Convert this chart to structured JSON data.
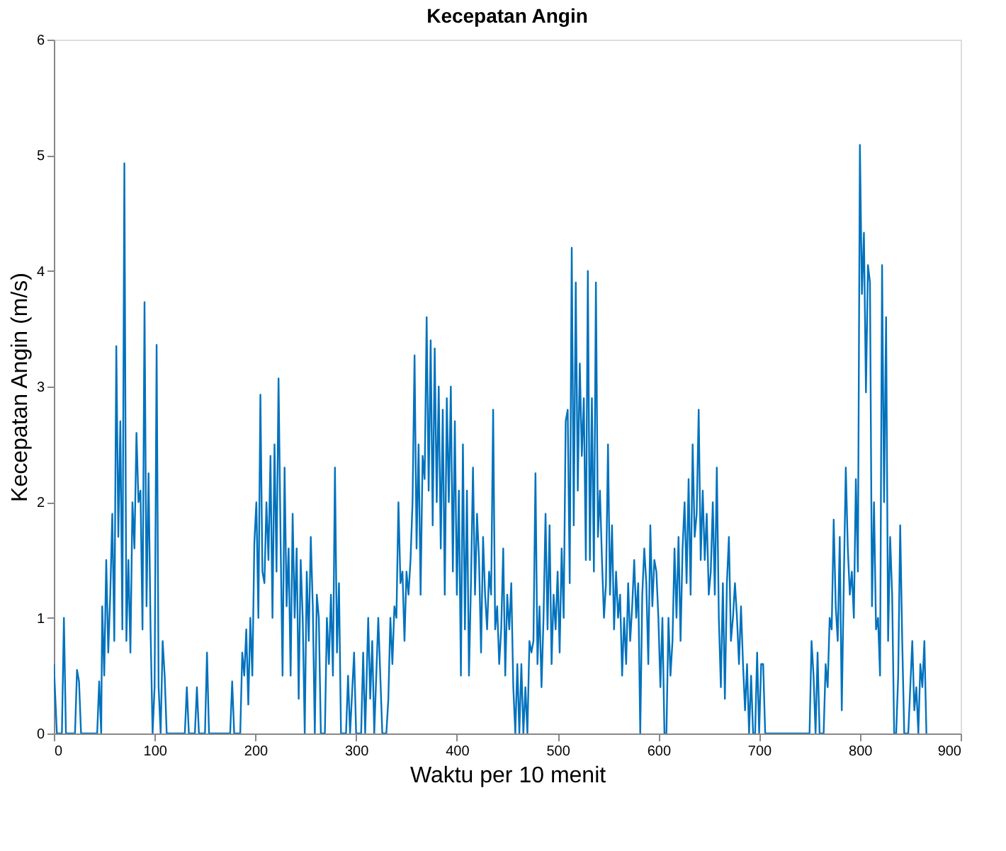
{
  "chart_data": {
    "type": "line",
    "title": "Kecepatan Angin",
    "xlabel": "Waktu per 10 menit",
    "ylabel": "Kecepatan Angin (m/s)",
    "xlim": [
      0,
      900
    ],
    "xticks": [
      0,
      100,
      200,
      300,
      400,
      500,
      600,
      700,
      800,
      900
    ],
    "ylim": [
      0,
      6
    ],
    "yticks": [
      0,
      1,
      2,
      3,
      4,
      5,
      6
    ],
    "grid": false,
    "line_style": "solid",
    "marker": "none",
    "series": [
      {
        "color": "#0072bd",
        "x": [
          0,
          3,
          8,
          10,
          12,
          21,
          23,
          25,
          27,
          43,
          45,
          47,
          48,
          50,
          52,
          54,
          56,
          58,
          60,
          62,
          64,
          66,
          68,
          70,
          72,
          74,
          76,
          78,
          80,
          82,
          84,
          86,
          88,
          90,
          92,
          94,
          96,
          98,
          100,
          102,
          104,
          106,
          108,
          110,
          112,
          130,
          132,
          134,
          140,
          142,
          144,
          150,
          152,
          154,
          175,
          177,
          179,
          185,
          187,
          189,
          191,
          193,
          195,
          197,
          199,
          201,
          203,
          205,
          207,
          209,
          211,
          213,
          215,
          217,
          219,
          221,
          223,
          225,
          227,
          229,
          231,
          233,
          235,
          237,
          239,
          241,
          243,
          245,
          247,
          249,
          251,
          253,
          255,
          257,
          259,
          261,
          263,
          265,
          269,
          271,
          273,
          275,
          277,
          279,
          281,
          283,
          285,
          290,
          292,
          294,
          298,
          300,
          305,
          307,
          309,
          312,
          314,
          316,
          318,
          322,
          324,
          326,
          330,
          332,
          334,
          336,
          338,
          340,
          342,
          344,
          346,
          348,
          350,
          352,
          354,
          356,
          358,
          360,
          362,
          364,
          366,
          368,
          370,
          372,
          374,
          376,
          378,
          380,
          382,
          384,
          386,
          388,
          390,
          392,
          394,
          396,
          398,
          400,
          402,
          404,
          406,
          408,
          410,
          412,
          414,
          416,
          418,
          420,
          422,
          424,
          426,
          428,
          430,
          432,
          434,
          436,
          438,
          440,
          442,
          444,
          446,
          448,
          450,
          452,
          454,
          456,
          458,
          460,
          462,
          464,
          466,
          468,
          470,
          472,
          474,
          476,
          478,
          480,
          482,
          484,
          486,
          488,
          490,
          492,
          494,
          496,
          498,
          500,
          502,
          504,
          506,
          508,
          510,
          512,
          514,
          516,
          518,
          520,
          522,
          524,
          526,
          528,
          530,
          532,
          534,
          536,
          538,
          540,
          542,
          544,
          546,
          548,
          550,
          552,
          554,
          556,
          558,
          560,
          562,
          564,
          566,
          568,
          570,
          572,
          574,
          576,
          578,
          580,
          582,
          584,
          586,
          588,
          590,
          592,
          594,
          596,
          598,
          600,
          602,
          604,
          606,
          608,
          610,
          612,
          614,
          616,
          618,
          620,
          622,
          624,
          626,
          628,
          630,
          632,
          634,
          636,
          638,
          640,
          642,
          644,
          646,
          648,
          650,
          652,
          654,
          656,
          658,
          660,
          662,
          664,
          666,
          668,
          670,
          672,
          674,
          676,
          678,
          680,
          682,
          684,
          686,
          688,
          690,
          692,
          694,
          696,
          698,
          700,
          702,
          704,
          706,
          750,
          752,
          754,
          756,
          758,
          760,
          764,
          766,
          768,
          770,
          772,
          774,
          776,
          778,
          780,
          782,
          784,
          786,
          788,
          790,
          792,
          794,
          796,
          798,
          800,
          802,
          804,
          806,
          808,
          810,
          812,
          814,
          816,
          818,
          820,
          822,
          824,
          826,
          828,
          830,
          832,
          834,
          836,
          838,
          840,
          842,
          844,
          848,
          852,
          854,
          856,
          858,
          860,
          862,
          864,
          866
        ],
        "values": [
          0.6,
          0,
          0,
          1.0,
          0,
          0,
          0.55,
          0.45,
          0,
          0,
          0.45,
          0,
          1.1,
          0.5,
          1.5,
          0.7,
          1.2,
          1.9,
          0.8,
          3.35,
          1.7,
          2.7,
          0.9,
          4.93,
          0.8,
          1.5,
          0.7,
          2.0,
          1.6,
          2.6,
          2.0,
          2.1,
          0.9,
          3.73,
          1.1,
          2.25,
          0.9,
          0,
          0.4,
          3.36,
          0.4,
          0,
          0.8,
          0.5,
          0,
          0,
          0.4,
          0,
          0,
          0.4,
          0,
          0,
          0.7,
          0,
          0,
          0.45,
          0,
          0,
          0.7,
          0.5,
          0.9,
          0.25,
          1.0,
          0.5,
          1.65,
          2.0,
          1.0,
          2.93,
          1.4,
          1.3,
          2.0,
          1.5,
          2.4,
          1.0,
          2.5,
          1.4,
          3.07,
          1.7,
          0.5,
          2.3,
          1.1,
          1.6,
          0.5,
          1.9,
          1.0,
          1.6,
          0.3,
          1.5,
          1.0,
          0,
          1.4,
          0.8,
          1.7,
          1.1,
          0,
          1.2,
          1.0,
          0,
          0,
          1.0,
          0.6,
          1.2,
          0.5,
          2.3,
          0.7,
          1.3,
          0,
          0,
          0.5,
          0,
          0.7,
          0,
          0,
          0.7,
          0,
          1.0,
          0.3,
          0.8,
          0,
          1.0,
          0.5,
          0,
          0,
          0.3,
          1.0,
          0.6,
          1.1,
          1.0,
          2.0,
          1.3,
          1.4,
          0.8,
          1.4,
          1.2,
          1.5,
          2.0,
          3.27,
          1.6,
          2.5,
          1.2,
          2.4,
          2.2,
          3.6,
          2.1,
          3.4,
          1.8,
          3.33,
          2.0,
          3.0,
          1.6,
          2.8,
          1.2,
          2.9,
          2.0,
          3.0,
          1.4,
          2.7,
          1.2,
          2.1,
          0.5,
          2.5,
          0.9,
          2.1,
          0.5,
          1.3,
          2.3,
          1.2,
          1.9,
          1.5,
          0.7,
          1.7,
          1.2,
          0.9,
          1.4,
          1.2,
          2.8,
          0.9,
          1.1,
          0.6,
          0.9,
          1.6,
          0.5,
          1.2,
          0.9,
          1.3,
          0.4,
          0,
          0.6,
          0,
          0.6,
          0,
          0.4,
          0,
          0.8,
          0.7,
          0.8,
          2.25,
          0.6,
          1.1,
          0.4,
          1.0,
          1.9,
          0.9,
          1.8,
          0.6,
          1.2,
          0.9,
          1.4,
          0.7,
          1.6,
          1.0,
          2.7,
          2.8,
          1.3,
          4.2,
          1.8,
          3.9,
          2.1,
          3.2,
          2.4,
          2.9,
          1.5,
          4.0,
          1.5,
          2.9,
          1.4,
          3.9,
          1.7,
          2.1,
          1.5,
          1.0,
          1.3,
          2.5,
          1.2,
          1.8,
          0.9,
          1.4,
          1.0,
          1.2,
          0.5,
          1.0,
          0.6,
          1.3,
          0.8,
          1.1,
          1.5,
          1.0,
          1.3,
          0,
          1.2,
          1.6,
          1.3,
          0.6,
          1.8,
          1.1,
          1.5,
          1.4,
          1.0,
          0.4,
          1.0,
          0,
          0,
          1.0,
          0.5,
          0.8,
          1.6,
          1.0,
          1.7,
          0.8,
          1.6,
          2.0,
          1.3,
          2.2,
          1.2,
          2.5,
          1.7,
          1.9,
          2.8,
          1.5,
          2.1,
          1.5,
          1.9,
          1.2,
          1.4,
          2.0,
          1.2,
          2.3,
          1.0,
          0.4,
          1.3,
          0.3,
          1.3,
          1.7,
          0.8,
          1.0,
          1.3,
          1.0,
          0.6,
          1.1,
          0.6,
          0.2,
          0.6,
          0,
          0.5,
          0,
          0,
          0.7,
          0,
          0.6,
          0.6,
          0,
          0,
          0.8,
          0.5,
          0,
          0.7,
          0,
          0,
          0.6,
          0.4,
          1.0,
          0.9,
          1.85,
          1.1,
          0.8,
          1.7,
          0.2,
          1.3,
          2.3,
          1.6,
          1.2,
          1.4,
          1.0,
          2.2,
          1.4,
          5.09,
          3.8,
          4.33,
          2.95,
          4.05,
          3.9,
          1.1,
          2.0,
          0.9,
          1.0,
          0.5,
          4.05,
          2.0,
          3.6,
          0.8,
          1.7,
          1.2,
          0,
          0,
          0.5,
          1.8,
          0.8,
          0,
          0,
          0.8,
          0.2,
          0.4,
          0,
          0.6,
          0.4,
          0.8,
          0
        ]
      }
    ]
  }
}
